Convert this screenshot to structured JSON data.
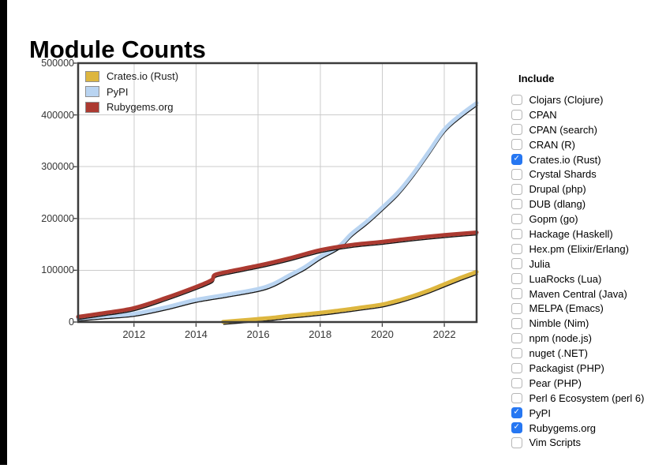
{
  "page": {
    "title": "Module Counts"
  },
  "chart_data": {
    "type": "line",
    "title": "Module Counts",
    "xlabel": "",
    "ylabel": "",
    "grid": true,
    "legend_position": "top-left",
    "x_axis": {
      "min": 2010.2,
      "max": 2023.04,
      "tick_labels": [
        2012,
        2014,
        2016,
        2018,
        2020,
        2022
      ]
    },
    "y_axis": {
      "min": 0,
      "max": 500000,
      "tick_labels": [
        0,
        100000,
        200000,
        300000,
        400000,
        500000
      ]
    },
    "line_shadow_color": "#151515",
    "grid_color": "#cbcbcb",
    "border_color": "#3c3c3c",
    "series": [
      {
        "name": "Crates.io (Rust)",
        "color": "#ddb63f",
        "points": [
          [
            2014.87,
            500
          ],
          [
            2015.3,
            2500
          ],
          [
            2016,
            6000
          ],
          [
            2016.5,
            8500
          ],
          [
            2017,
            12000
          ],
          [
            2017.5,
            15000
          ],
          [
            2018,
            18000
          ],
          [
            2018.5,
            21500
          ],
          [
            2019,
            25500
          ],
          [
            2019.5,
            29500
          ],
          [
            2020,
            34000
          ],
          [
            2020.5,
            41500
          ],
          [
            2021,
            50500
          ],
          [
            2021.5,
            61000
          ],
          [
            2022,
            73000
          ],
          [
            2022.5,
            85000
          ],
          [
            2023.04,
            97000
          ]
        ]
      },
      {
        "name": "PyPI",
        "color": "#b9d4f1",
        "points": [
          [
            2010.2,
            7000
          ],
          [
            2011,
            11000
          ],
          [
            2012,
            16000
          ],
          [
            2013,
            28000
          ],
          [
            2014,
            43000
          ],
          [
            2015,
            53000
          ],
          [
            2016,
            64000
          ],
          [
            2016.5,
            74000
          ],
          [
            2017,
            90000
          ],
          [
            2017.5,
            106000
          ],
          [
            2018,
            126000
          ],
          [
            2018.6,
            146000
          ],
          [
            2019,
            170000
          ],
          [
            2019.5,
            194000
          ],
          [
            2020,
            221000
          ],
          [
            2020.5,
            250000
          ],
          [
            2021,
            287000
          ],
          [
            2021.5,
            329000
          ],
          [
            2022,
            372000
          ],
          [
            2022.5,
            399000
          ],
          [
            2023.04,
            423000
          ]
        ]
      },
      {
        "name": "Rubygems.org",
        "color": "#ac3a31",
        "points": [
          [
            2010.2,
            10000
          ],
          [
            2011,
            17000
          ],
          [
            2012,
            27000
          ],
          [
            2013,
            46000
          ],
          [
            2014,
            68000
          ],
          [
            2014.5,
            81000
          ],
          [
            2014.6,
            91000
          ],
          [
            2015,
            97000
          ],
          [
            2016,
            109000
          ],
          [
            2017,
            123000
          ],
          [
            2018,
            139000
          ],
          [
            2019,
            149000
          ],
          [
            2020,
            155000
          ],
          [
            2021,
            162000
          ],
          [
            2022,
            168000
          ],
          [
            2023.04,
            173000
          ]
        ]
      }
    ]
  },
  "include_panel": {
    "heading": "Include",
    "checked_color": "#2677f2",
    "items": [
      {
        "label": "Clojars (Clojure)",
        "checked": false
      },
      {
        "label": "CPAN",
        "checked": false
      },
      {
        "label": "CPAN (search)",
        "checked": false
      },
      {
        "label": "CRAN (R)",
        "checked": false
      },
      {
        "label": "Crates.io (Rust)",
        "checked": true
      },
      {
        "label": "Crystal Shards",
        "checked": false
      },
      {
        "label": "Drupal (php)",
        "checked": false
      },
      {
        "label": "DUB (dlang)",
        "checked": false
      },
      {
        "label": "Gopm (go)",
        "checked": false
      },
      {
        "label": "Hackage (Haskell)",
        "checked": false
      },
      {
        "label": "Hex.pm (Elixir/Erlang)",
        "checked": false
      },
      {
        "label": "Julia",
        "checked": false
      },
      {
        "label": "LuaRocks (Lua)",
        "checked": false
      },
      {
        "label": "Maven Central (Java)",
        "checked": false
      },
      {
        "label": "MELPA (Emacs)",
        "checked": false
      },
      {
        "label": "Nimble (Nim)",
        "checked": false
      },
      {
        "label": "npm (node.js)",
        "checked": false
      },
      {
        "label": "nuget (.NET)",
        "checked": false
      },
      {
        "label": "Packagist (PHP)",
        "checked": false
      },
      {
        "label": "Pear (PHP)",
        "checked": false
      },
      {
        "label": "Perl 6 Ecosystem (perl 6)",
        "checked": false
      },
      {
        "label": "PyPI",
        "checked": true
      },
      {
        "label": "Rubygems.org",
        "checked": true
      },
      {
        "label": "Vim Scripts",
        "checked": false
      }
    ]
  }
}
